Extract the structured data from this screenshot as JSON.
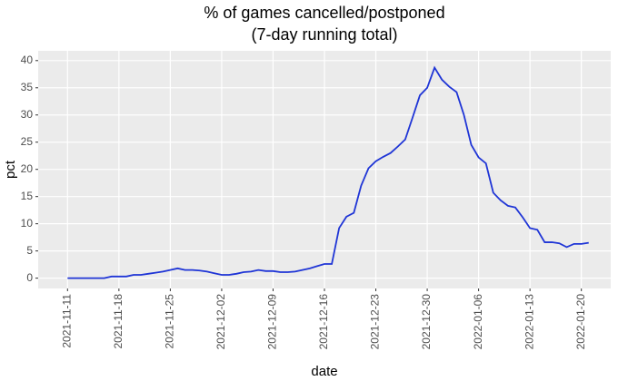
{
  "chart_data": {
    "type": "line",
    "title": "% of games cancelled/postponed",
    "subtitle": "(7-day running total)",
    "x_label": "date",
    "y_label": "pct",
    "x": [
      "2021-11-11",
      "2021-11-12",
      "2021-11-13",
      "2021-11-14",
      "2021-11-15",
      "2021-11-16",
      "2021-11-17",
      "2021-11-18",
      "2021-11-19",
      "2021-11-20",
      "2021-11-21",
      "2021-11-22",
      "2021-11-23",
      "2021-11-24",
      "2021-11-25",
      "2021-11-26",
      "2021-11-27",
      "2021-11-28",
      "2021-11-29",
      "2021-11-30",
      "2021-12-01",
      "2021-12-02",
      "2021-12-03",
      "2021-12-04",
      "2021-12-05",
      "2021-12-06",
      "2021-12-07",
      "2021-12-08",
      "2021-12-09",
      "2021-12-10",
      "2021-12-11",
      "2021-12-12",
      "2021-12-13",
      "2021-12-14",
      "2021-12-15",
      "2021-12-16",
      "2021-12-17",
      "2021-12-18",
      "2021-12-19",
      "2021-12-20",
      "2021-12-21",
      "2021-12-22",
      "2021-12-23",
      "2021-12-24",
      "2021-12-25",
      "2021-12-26",
      "2021-12-27",
      "2021-12-28",
      "2021-12-29",
      "2021-12-30",
      "2021-12-31",
      "2022-01-01",
      "2022-01-02",
      "2022-01-03",
      "2022-01-04",
      "2022-01-05",
      "2022-01-06",
      "2022-01-07",
      "2022-01-08",
      "2022-01-09",
      "2022-01-10",
      "2022-01-11",
      "2022-01-12",
      "2022-01-13",
      "2022-01-14",
      "2022-01-15",
      "2022-01-16",
      "2022-01-17",
      "2022-01-18",
      "2022-01-19",
      "2022-01-20",
      "2022-01-21"
    ],
    "series": [
      {
        "name": "pct",
        "color": "#1f35d6",
        "values": [
          0,
          0,
          0,
          0,
          0,
          0,
          0.3,
          0.3,
          0.3,
          0.6,
          0.6,
          0.8,
          1.0,
          1.2,
          1.5,
          1.8,
          1.5,
          1.5,
          1.4,
          1.2,
          0.9,
          0.6,
          0.6,
          0.8,
          1.1,
          1.2,
          1.5,
          1.3,
          1.3,
          1.1,
          1.1,
          1.2,
          1.5,
          1.8,
          2.2,
          2.6,
          2.6,
          9.2,
          11.3,
          12,
          17,
          20.2,
          21.5,
          22.3,
          23,
          24.2,
          25.5,
          29.5,
          33.6,
          35,
          38.7,
          36.5,
          35.2,
          34.2,
          30,
          24.5,
          22.2,
          21.1,
          15.7,
          14.3,
          13.3,
          13,
          11.2,
          9.2,
          8.9,
          6.6,
          6.6,
          6.4,
          5.7,
          6.3,
          6.3,
          6.5
        ]
      }
    ],
    "xlim": [
      "2021-11-07",
      "2022-01-24"
    ],
    "xticks": [
      "2021-11-11",
      "2021-11-18",
      "2021-11-25",
      "2021-12-02",
      "2021-12-09",
      "2021-12-16",
      "2021-12-23",
      "2021-12-30",
      "2022-01-06",
      "2022-01-13",
      "2022-01-20"
    ],
    "ylim": [
      -1.9,
      41.8
    ],
    "yticks": [
      0,
      5,
      10,
      15,
      20,
      25,
      30,
      35,
      40
    ],
    "grid": true
  }
}
